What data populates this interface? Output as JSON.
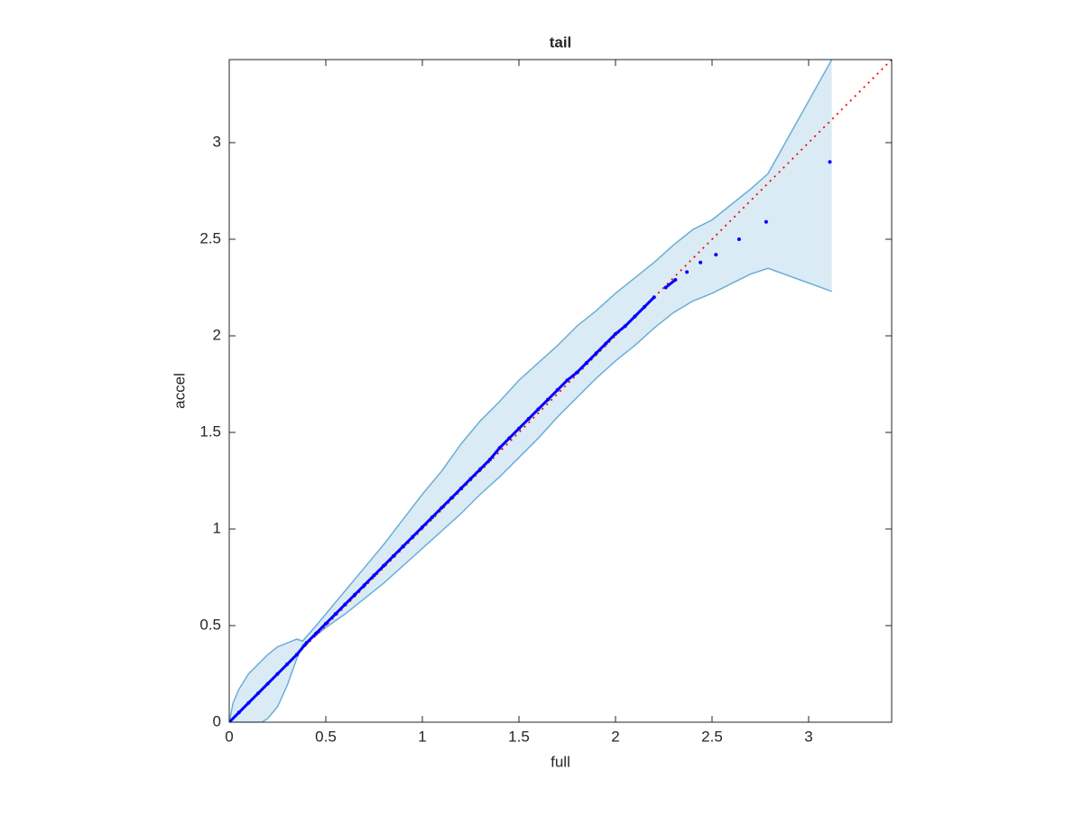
{
  "chart_data": {
    "type": "scatter",
    "title": "tail",
    "xlabel": "full",
    "ylabel": "accel",
    "xlim": [
      0,
      3.43
    ],
    "ylim": [
      0,
      3.43
    ],
    "xticks": [
      0,
      0.5,
      1,
      1.5,
      2,
      2.5,
      3
    ],
    "yticks": [
      0,
      0.5,
      1,
      1.5,
      2,
      2.5,
      3
    ],
    "grid": false,
    "points": {
      "color": "#0000ff",
      "x": [
        0,
        0.05,
        0.1,
        0.15,
        0.2,
        0.25,
        0.3,
        0.35,
        0.4,
        0.45,
        0.5,
        0.55,
        0.6,
        0.65,
        0.7,
        0.75,
        0.8,
        0.85,
        0.9,
        0.95,
        1.0,
        1.05,
        1.1,
        1.15,
        1.2,
        1.25,
        1.3,
        1.35,
        1.4,
        1.45,
        1.5,
        1.55,
        1.6,
        1.65,
        1.7,
        1.75,
        1.8,
        1.85,
        1.9,
        1.95,
        2.0,
        2.05,
        2.1,
        2.15,
        2.2,
        2.26,
        2.31,
        2.37,
        2.44,
        2.52,
        2.64,
        2.78,
        3.11
      ],
      "y": [
        0,
        0.05,
        0.1,
        0.15,
        0.2,
        0.25,
        0.3,
        0.35,
        0.41,
        0.46,
        0.51,
        0.56,
        0.61,
        0.66,
        0.71,
        0.76,
        0.81,
        0.86,
        0.91,
        0.96,
        1.01,
        1.06,
        1.11,
        1.16,
        1.21,
        1.26,
        1.31,
        1.36,
        1.42,
        1.47,
        1.52,
        1.57,
        1.62,
        1.67,
        1.72,
        1.77,
        1.81,
        1.86,
        1.91,
        1.96,
        2.01,
        2.05,
        2.1,
        2.15,
        2.2,
        2.25,
        2.29,
        2.33,
        2.38,
        2.42,
        2.5,
        2.59,
        2.9
      ]
    },
    "band": {
      "color": "#6baed6",
      "x": [
        0,
        0.02,
        0.05,
        0.1,
        0.15,
        0.17,
        0.2,
        0.25,
        0.3,
        0.35,
        0.38,
        0.45,
        0.5,
        0.6,
        0.7,
        0.8,
        0.9,
        1.0,
        1.1,
        1.2,
        1.3,
        1.4,
        1.5,
        1.6,
        1.7,
        1.8,
        1.9,
        2.0,
        2.1,
        2.2,
        2.3,
        2.4,
        2.5,
        2.6,
        2.7,
        2.79,
        3.12
      ],
      "upper": [
        0,
        0.1,
        0.17,
        0.25,
        0.3,
        0.32,
        0.35,
        0.39,
        0.41,
        0.43,
        0.42,
        0.5,
        0.56,
        0.68,
        0.8,
        0.92,
        1.05,
        1.18,
        1.3,
        1.44,
        1.56,
        1.66,
        1.77,
        1.86,
        1.95,
        2.05,
        2.13,
        2.22,
        2.3,
        2.38,
        2.47,
        2.55,
        2.6,
        2.68,
        2.76,
        2.84,
        3.43
      ],
      "lower": [
        0,
        0,
        0,
        0,
        0,
        0,
        0.02,
        0.08,
        0.19,
        0.33,
        0.4,
        0.45,
        0.49,
        0.56,
        0.64,
        0.72,
        0.81,
        0.9,
        0.99,
        1.08,
        1.18,
        1.27,
        1.37,
        1.47,
        1.58,
        1.68,
        1.78,
        1.87,
        1.95,
        2.04,
        2.12,
        2.18,
        2.22,
        2.27,
        2.32,
        2.35,
        2.23
      ]
    },
    "reference": {
      "color": "#ff0000",
      "x": [
        0,
        3.43
      ],
      "y": [
        0,
        3.43
      ]
    }
  }
}
